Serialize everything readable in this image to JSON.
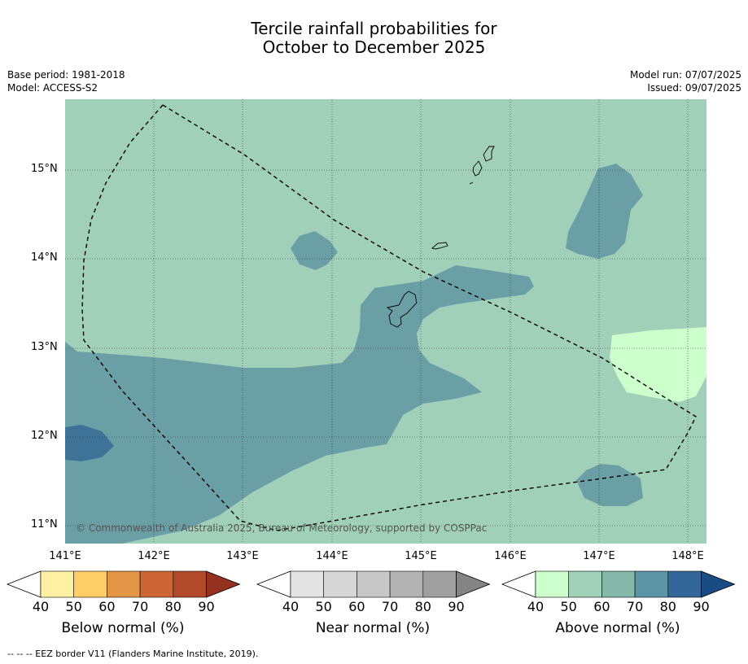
{
  "title": {
    "line1": "Tercile rainfall probabilities for",
    "line2": "October to December 2025"
  },
  "meta": {
    "base_period": "Base period: 1981-2018",
    "model": "Model: ACCESS-S2",
    "model_run": "Model run: 07/07/2025",
    "issued": "Issued: 09/07/2025"
  },
  "map": {
    "latitudes": [
      "15°N",
      "14°N",
      "13°N",
      "12°N",
      "11°N"
    ],
    "longitudes": [
      "141°E",
      "142°E",
      "143°E",
      "144°E",
      "145°E",
      "146°E",
      "147°E",
      "148°E"
    ],
    "copyright": "© Commonwealth of Australia 2025, Bureau of Meteorology, supported by COSPPac",
    "colors": {
      "above_50": "#a1d0b9",
      "above_60": "#86b8aa",
      "above_70": "#6b9fa6",
      "above_80": "#3e7397",
      "above_40": "#ccffcc"
    }
  },
  "colorbars": [
    {
      "name": "Below normal (%)",
      "ticks": [
        "40",
        "50",
        "60",
        "70",
        "80",
        "90"
      ],
      "colors": [
        "#fff0a4",
        "#fdcd67",
        "#e39646",
        "#cd6634",
        "#b14a2a",
        "#94311f"
      ]
    },
    {
      "name": "Near normal (%)",
      "ticks": [
        "40",
        "50",
        "60",
        "70",
        "80",
        "90"
      ],
      "colors": [
        "#e4e4e4",
        "#d7d7d7",
        "#c8c8c8",
        "#b3b3b3",
        "#a0a0a0",
        "#848484"
      ]
    },
    {
      "name": "Above normal (%)",
      "ticks": [
        "40",
        "50",
        "60",
        "70",
        "80",
        "90"
      ],
      "colors": [
        "#ccffcc",
        "#a1d0b9",
        "#86b8aa",
        "#5b94a4",
        "#336699",
        "#184c83"
      ]
    }
  ],
  "footnote": "--  --  -- EEZ border V11 (Flanders Marine Institute, 2019)."
}
